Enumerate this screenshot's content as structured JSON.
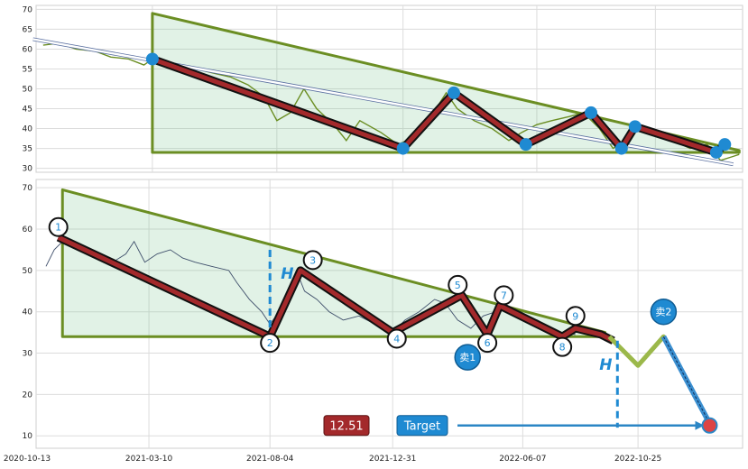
{
  "chart_data": [
    {
      "type": "line",
      "panel": "top",
      "ylim": [
        29,
        71
      ],
      "y_ticks": [
        30,
        35,
        40,
        45,
        50,
        55,
        60,
        65,
        70
      ],
      "x_range": [
        "2020-10-13",
        "2023-02-05"
      ],
      "price_series": [
        [
          "2020-11-01",
          61
        ],
        [
          "2020-11-20",
          61.5
        ],
        [
          "2020-12-10",
          60
        ],
        [
          "2021-01-01",
          59.5
        ],
        [
          "2021-01-20",
          58
        ],
        [
          "2021-02-10",
          57.5
        ],
        [
          "2021-02-28",
          56
        ],
        [
          "2021-03-10",
          57.5
        ],
        [
          "2021-03-25",
          57
        ],
        [
          "2021-04-10",
          56
        ],
        [
          "2021-05-01",
          55
        ],
        [
          "2021-05-20",
          54
        ],
        [
          "2021-06-10",
          53
        ],
        [
          "2021-07-01",
          51
        ],
        [
          "2021-07-20",
          48
        ],
        [
          "2021-08-04",
          42
        ],
        [
          "2021-08-20",
          44
        ],
        [
          "2021-09-05",
          50
        ],
        [
          "2021-09-20",
          45
        ],
        [
          "2021-10-10",
          41
        ],
        [
          "2021-10-25",
          37
        ],
        [
          "2021-11-10",
          42
        ],
        [
          "2021-12-05",
          39
        ],
        [
          "2021-12-25",
          36
        ],
        [
          "2022-01-15",
          38
        ],
        [
          "2022-02-05",
          44
        ],
        [
          "2022-02-20",
          49
        ],
        [
          "2022-03-05",
          45
        ],
        [
          "2022-03-25",
          42
        ],
        [
          "2022-04-15",
          40
        ],
        [
          "2022-05-05",
          37
        ],
        [
          "2022-05-20",
          39
        ],
        [
          "2022-06-07",
          41
        ],
        [
          "2022-06-25",
          42
        ],
        [
          "2022-07-15",
          43
        ],
        [
          "2022-08-01",
          44
        ],
        [
          "2022-08-20",
          40
        ],
        [
          "2022-09-05",
          35
        ],
        [
          "2022-09-20",
          37
        ],
        [
          "2022-10-05",
          40
        ],
        [
          "2022-10-25",
          39
        ],
        [
          "2022-11-15",
          37
        ],
        [
          "2022-12-05",
          35
        ],
        [
          "2022-12-25",
          36
        ],
        [
          "2023-01-10",
          32
        ],
        [
          "2023-01-25",
          33
        ],
        [
          "2023-02-01",
          33.5
        ]
      ],
      "triangle": [
        [
          "2021-03-10",
          69
        ],
        [
          "2021-03-10",
          34
        ],
        [
          "2023-02-01",
          34
        ],
        [
          "2023-02-01",
          34.5
        ]
      ],
      "pattern_points": [
        [
          "2021-03-10",
          57.5
        ],
        [
          "2021-12-31",
          35
        ],
        [
          "2022-03-01",
          49
        ],
        [
          "2022-05-25",
          36
        ],
        [
          "2022-08-10",
          44
        ],
        [
          "2022-09-15",
          35
        ],
        [
          "2022-10-01",
          40.5
        ],
        [
          "2023-01-05",
          34
        ],
        [
          "2023-01-15",
          36
        ]
      ],
      "trend_line": [
        [
          "2020-10-20",
          62.5
        ],
        [
          "2023-01-25",
          31
        ]
      ]
    },
    {
      "type": "line",
      "panel": "bottom",
      "ylim": [
        7,
        72
      ],
      "y_ticks": [
        10,
        20,
        30,
        40,
        50,
        60,
        70
      ],
      "x_range": [
        "2020-10-13",
        "2023-03-01"
      ],
      "x_ticks": [
        "2020-10-13",
        "2021-03-10",
        "2021-08-04",
        "2021-12-31",
        "2022-06-07",
        "2022-10-25"
      ],
      "price_series": [
        [
          "2020-11-05",
          51
        ],
        [
          "2020-11-15",
          55
        ],
        [
          "2020-11-25",
          57
        ],
        [
          "2020-12-10",
          56
        ],
        [
          "2020-12-25",
          54
        ],
        [
          "2021-01-10",
          53
        ],
        [
          "2021-01-25",
          52
        ],
        [
          "2021-02-10",
          54
        ],
        [
          "2021-02-20",
          57
        ],
        [
          "2021-03-05",
          52
        ],
        [
          "2021-03-20",
          54
        ],
        [
          "2021-04-05",
          55
        ],
        [
          "2021-04-20",
          53
        ],
        [
          "2021-05-05",
          52
        ],
        [
          "2021-05-25",
          51
        ],
        [
          "2021-06-15",
          50
        ],
        [
          "2021-06-25",
          47
        ],
        [
          "2021-07-10",
          43
        ],
        [
          "2021-07-25",
          40
        ],
        [
          "2021-08-04",
          37
        ],
        [
          "2021-08-15",
          40
        ],
        [
          "2021-08-25",
          45
        ],
        [
          "2021-09-05",
          50
        ],
        [
          "2021-09-15",
          45
        ],
        [
          "2021-09-30",
          43
        ],
        [
          "2021-10-15",
          40
        ],
        [
          "2021-11-01",
          38
        ],
        [
          "2021-11-20",
          39
        ],
        [
          "2021-12-10",
          37
        ],
        [
          "2021-12-31",
          35
        ],
        [
          "2022-01-15",
          38
        ],
        [
          "2022-02-01",
          40
        ],
        [
          "2022-02-20",
          43
        ],
        [
          "2022-03-05",
          42
        ],
        [
          "2022-03-20",
          38
        ],
        [
          "2022-04-05",
          36
        ],
        [
          "2022-04-20",
          39
        ],
        [
          "2022-05-05",
          40
        ],
        [
          "2022-05-20",
          40.5
        ],
        [
          "2022-06-05",
          39
        ],
        [
          "2022-06-25",
          38
        ],
        [
          "2022-07-10",
          36
        ],
        [
          "2022-07-25",
          35
        ],
        [
          "2022-08-10",
          34.5
        ]
      ],
      "triangle": [
        [
          "2020-11-25",
          69.5
        ],
        [
          "2020-11-25",
          34
        ],
        [
          "2022-09-15",
          34
        ],
        [
          "2022-09-15",
          35
        ]
      ],
      "pattern_points": [
        [
          "2020-11-20",
          58
        ],
        [
          "2021-08-04",
          34
        ],
        [
          "2021-09-10",
          50
        ],
        [
          "2021-12-31",
          35
        ],
        [
          "2022-03-25",
          44
        ],
        [
          "2022-04-25",
          34.5
        ],
        [
          "2022-05-10",
          41.5
        ],
        [
          "2022-07-25",
          34
        ],
        [
          "2022-08-10",
          36
        ],
        [
          "2022-09-10",
          34.5
        ],
        [
          "2022-09-25",
          33
        ]
      ],
      "marker_labels": [
        {
          "label": "1",
          "x": "2020-11-20",
          "y": 60.5
        },
        {
          "label": "2",
          "x": "2021-08-04",
          "y": 32.5
        },
        {
          "label": "3",
          "x": "2021-09-25",
          "y": 52.5
        },
        {
          "label": "4",
          "x": "2022-01-05",
          "y": 33.5
        },
        {
          "label": "5",
          "x": "2022-03-20",
          "y": 46.5
        },
        {
          "label": "6",
          "x": "2022-04-25",
          "y": 32.5
        },
        {
          "label": "7",
          "x": "2022-05-15",
          "y": 44
        },
        {
          "label": "8",
          "x": "2022-07-25",
          "y": 31.5
        },
        {
          "label": "9",
          "x": "2022-08-10",
          "y": 39
        }
      ],
      "forecast_path": [
        [
          "2022-09-20",
          34
        ],
        [
          "2022-10-25",
          27
        ],
        [
          "2022-11-25",
          34
        ],
        [
          "2023-01-20",
          13
        ]
      ],
      "sell_points": [
        {
          "label": "卖1",
          "x": "2022-04-01",
          "y": 29
        },
        {
          "label": "卖2",
          "x": "2022-11-25",
          "y": 40
        }
      ],
      "h_markers": [
        {
          "label": "H",
          "x_line": "2021-08-04",
          "y_from": 55,
          "y_to": 36
        },
        {
          "label": "H",
          "x_line": "2022-09-30",
          "y_from": 33,
          "y_to": 12
        }
      ],
      "target": {
        "label": "Target",
        "value": "12.51",
        "y": 12.51,
        "x_end": "2023-01-20"
      }
    }
  ]
}
